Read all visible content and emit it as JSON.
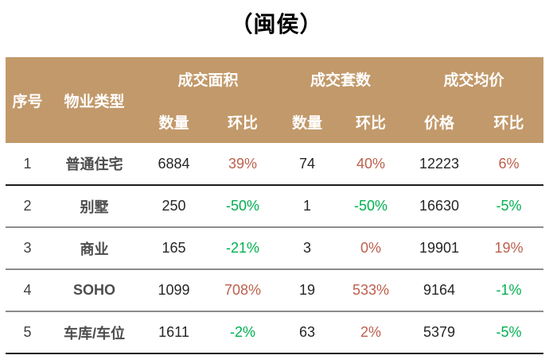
{
  "title": "（闽侯）",
  "colors": {
    "header_bg": "#c2996a",
    "header_text": "#ffffff",
    "positive": "#bd5f4c",
    "negative": "#00b050",
    "row_text": "#262626",
    "label_text": "#4d4d4d"
  },
  "table": {
    "col_serial": "序号",
    "col_property": "物业类型",
    "group_area": "成交面积",
    "group_units": "成交套数",
    "group_price": "成交均价",
    "sub_area_qty": "数量",
    "sub_area_mom": "环比",
    "sub_units_qty": "数量",
    "sub_units_mom": "环比",
    "sub_price": "价格",
    "sub_price_mom": "环比",
    "rows": [
      {
        "no": "1",
        "type": "普通住宅",
        "area_qty": "6884",
        "area_mom": "39%",
        "units_qty": "74",
        "units_mom": "40%",
        "price": "12223",
        "price_mom": "6%"
      },
      {
        "no": "2",
        "type": "别墅",
        "area_qty": "250",
        "area_mom": "-50%",
        "units_qty": "1",
        "units_mom": "-50%",
        "price": "16630",
        "price_mom": "-5%"
      },
      {
        "no": "3",
        "type": "商业",
        "area_qty": "165",
        "area_mom": "-21%",
        "units_qty": "3",
        "units_mom": "0%",
        "price": "19901",
        "price_mom": "19%"
      },
      {
        "no": "4",
        "type": "SOHO",
        "area_qty": "1099",
        "area_mom": "708%",
        "units_qty": "19",
        "units_mom": "533%",
        "price": "9164",
        "price_mom": "-1%"
      },
      {
        "no": "5",
        "type": "车库/车位",
        "area_qty": "1611",
        "area_mom": "-2%",
        "units_qty": "63",
        "units_mom": "2%",
        "price": "5379",
        "price_mom": "-5%"
      }
    ]
  },
  "chart_data": {
    "type": "table",
    "title": "（闽侯）",
    "columns": [
      "序号",
      "物业类型",
      "成交面积 数量",
      "成交面积 环比",
      "成交套数 数量",
      "成交套数 环比",
      "成交均价 价格",
      "成交均价 环比"
    ],
    "rows": [
      [
        1,
        "普通住宅",
        6884,
        "39%",
        74,
        "40%",
        12223,
        "6%"
      ],
      [
        2,
        "别墅",
        250,
        "-50%",
        1,
        "-50%",
        16630,
        "-5%"
      ],
      [
        3,
        "商业",
        165,
        "-21%",
        3,
        "0%",
        19901,
        "19%"
      ],
      [
        4,
        "SOHO",
        1099,
        "708%",
        19,
        "533%",
        9164,
        "-1%"
      ],
      [
        5,
        "车库/车位",
        1611,
        "-2%",
        63,
        "2%",
        5379,
        "-5%"
      ]
    ]
  }
}
